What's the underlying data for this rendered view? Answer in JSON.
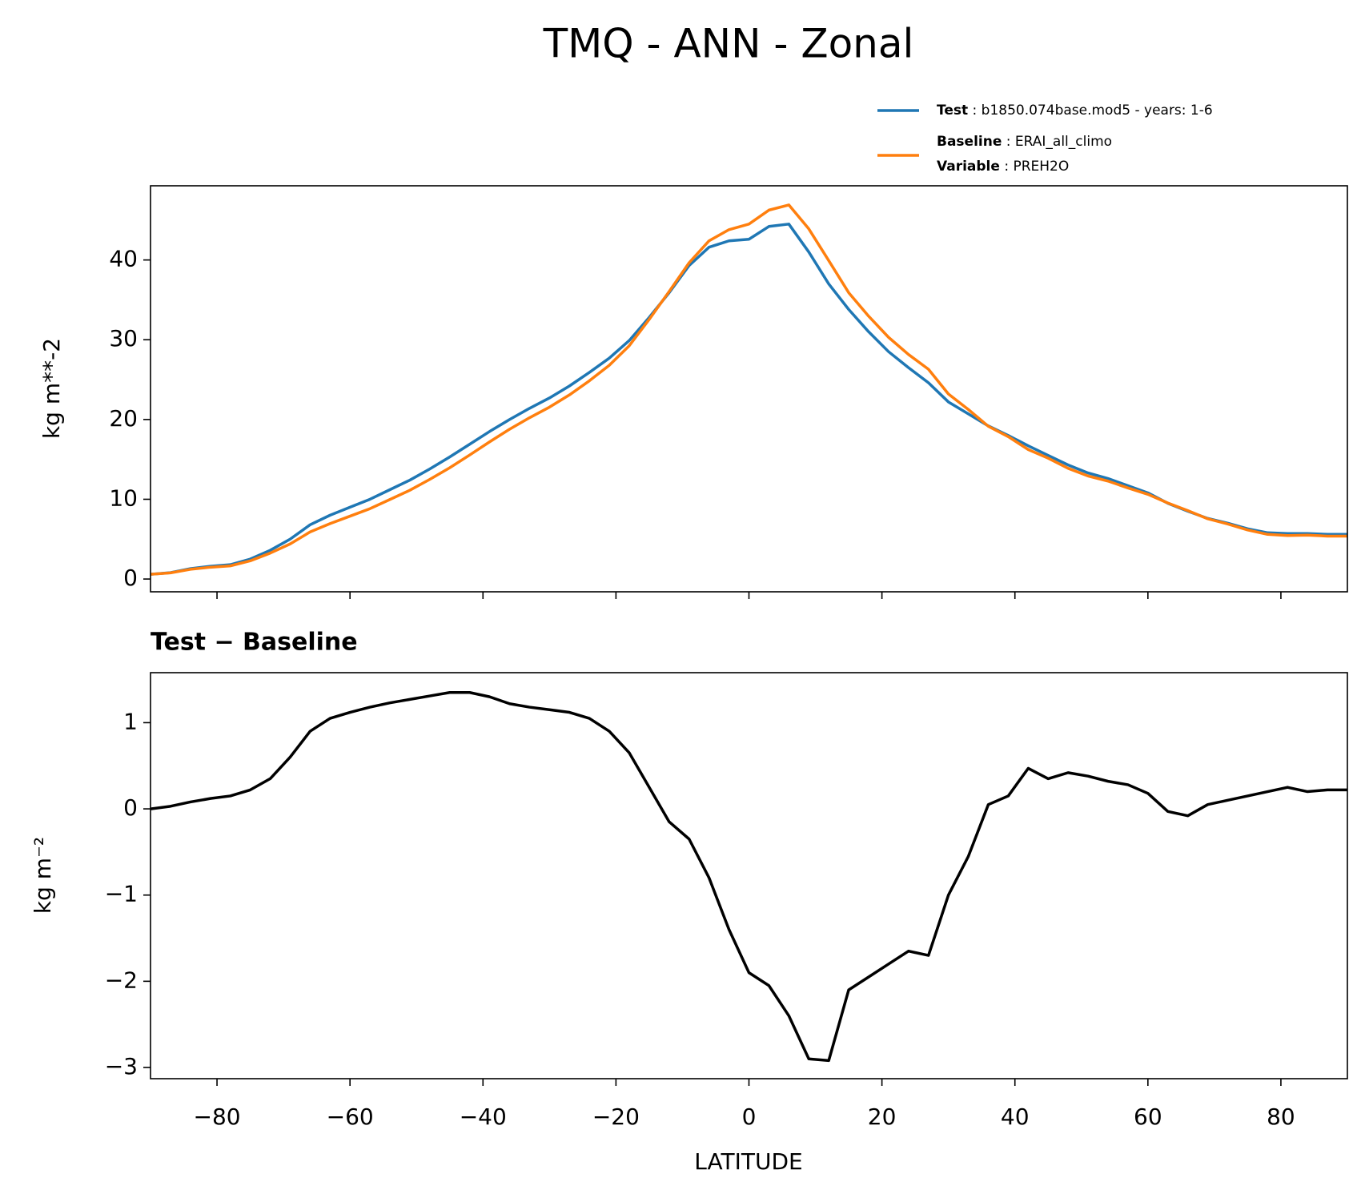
{
  "chart_data": [
    {
      "type": "line",
      "title": "TMQ - ANN - Zonal",
      "ylabel": "kg m**-2",
      "x": [
        -90,
        -87,
        -84,
        -81,
        -78,
        -75,
        -72,
        -69,
        -66,
        -63,
        -60,
        -57,
        -54,
        -51,
        -48,
        -45,
        -42,
        -39,
        -36,
        -33,
        -30,
        -27,
        -24,
        -21,
        -18,
        -15,
        -12,
        -9,
        -6,
        -3,
        0,
        3,
        6,
        9,
        12,
        15,
        18,
        21,
        24,
        27,
        30,
        33,
        36,
        39,
        42,
        45,
        48,
        51,
        54,
        57,
        60,
        63,
        66,
        69,
        72,
        75,
        78,
        81,
        84,
        87,
        90
      ],
      "xlim": [
        -90,
        90
      ],
      "ylim": [
        -1.6,
        49.3
      ],
      "yticks": [
        0,
        10,
        20,
        30,
        40
      ],
      "series": [
        {
          "name": "Test",
          "description": ": b1850.074base.mod5 - years: 1-6",
          "color": "#1f77b4",
          "values": [
            0.6,
            0.8,
            1.3,
            1.6,
            1.8,
            2.5,
            3.6,
            5.0,
            6.8,
            8.0,
            9.0,
            10.0,
            11.2,
            12.4,
            13.8,
            15.3,
            16.9,
            18.5,
            20.0,
            21.4,
            22.7,
            24.2,
            25.9,
            27.7,
            29.9,
            32.8,
            35.9,
            39.3,
            41.6,
            42.4,
            42.6,
            44.2,
            44.5,
            41.0,
            37.0,
            33.8,
            31.0,
            28.5,
            26.5,
            24.6,
            22.2,
            20.7,
            19.2,
            18.0,
            16.7,
            15.5,
            14.3,
            13.3,
            12.6,
            11.7,
            10.8,
            9.5,
            8.5,
            7.6,
            7.0,
            6.3,
            5.8,
            5.7,
            5.7,
            5.6,
            5.6
          ]
        },
        {
          "name": "Baseline",
          "description": ": ERAI_all_climo",
          "extra_name": "Variable",
          "extra_description": ": PREH2O",
          "color": "#ff7f0e",
          "values": [
            0.6,
            0.77,
            1.22,
            1.48,
            1.65,
            2.28,
            3.25,
            4.4,
            5.9,
            6.95,
            7.88,
            8.82,
            9.97,
            11.13,
            12.49,
            13.95,
            15.55,
            17.2,
            18.78,
            20.22,
            21.55,
            23.08,
            24.85,
            26.8,
            29.25,
            32.55,
            36.05,
            39.65,
            42.4,
            43.8,
            44.5,
            46.25,
            46.9,
            43.9,
            39.92,
            35.9,
            32.95,
            30.3,
            28.15,
            26.3,
            23.2,
            21.25,
            19.15,
            17.85,
            16.23,
            15.15,
            13.88,
            12.92,
            12.28,
            11.42,
            10.62,
            9.53,
            8.58,
            7.55,
            6.9,
            6.15,
            5.6,
            5.45,
            5.5,
            5.38,
            5.38
          ]
        }
      ]
    },
    {
      "type": "line",
      "title": "Test − Baseline",
      "xlabel": "LATITUDE",
      "ylabel": "kg m⁻²",
      "x": [
        -90,
        -87,
        -84,
        -81,
        -78,
        -75,
        -72,
        -69,
        -66,
        -63,
        -60,
        -57,
        -54,
        -51,
        -48,
        -45,
        -42,
        -39,
        -36,
        -33,
        -30,
        -27,
        -24,
        -21,
        -18,
        -15,
        -12,
        -9,
        -6,
        -3,
        0,
        3,
        6,
        9,
        12,
        15,
        18,
        21,
        24,
        27,
        30,
        33,
        36,
        39,
        42,
        45,
        48,
        51,
        54,
        57,
        60,
        63,
        66,
        69,
        72,
        75,
        78,
        81,
        84,
        87,
        90
      ],
      "xlim": [
        -90,
        90
      ],
      "xticks": [
        {
          "value": -80,
          "label": "−80"
        },
        {
          "value": -60,
          "label": "−60"
        },
        {
          "value": -40,
          "label": "−40"
        },
        {
          "value": -20,
          "label": "−20"
        },
        0,
        20,
        40,
        60,
        80
      ],
      "ylim": [
        -3.13,
        1.58
      ],
      "yticks": [
        {
          "value": -3,
          "label": "−3"
        },
        {
          "value": -2,
          "label": "−2"
        },
        {
          "value": -1,
          "label": "−1"
        },
        0,
        1
      ],
      "series": [
        {
          "name": "Test − Baseline",
          "color": "#000000",
          "values": [
            0,
            0.03,
            0.08,
            0.12,
            0.15,
            0.22,
            0.35,
            0.6,
            0.9,
            1.05,
            1.12,
            1.18,
            1.23,
            1.27,
            1.31,
            1.35,
            1.35,
            1.3,
            1.22,
            1.18,
            1.15,
            1.12,
            1.05,
            0.9,
            0.65,
            0.25,
            -0.15,
            -0.35,
            -0.8,
            -1.4,
            -1.9,
            -2.05,
            -2.4,
            -2.9,
            -2.92,
            -2.1,
            -1.95,
            -1.8,
            -1.65,
            -1.7,
            -1.0,
            -0.55,
            0.05,
            0.15,
            0.47,
            0.35,
            0.42,
            0.38,
            0.32,
            0.28,
            0.18,
            -0.03,
            -0.08,
            0.05,
            0.1,
            0.15,
            0.2,
            0.25,
            0.2,
            0.22,
            0.22
          ]
        }
      ]
    }
  ]
}
